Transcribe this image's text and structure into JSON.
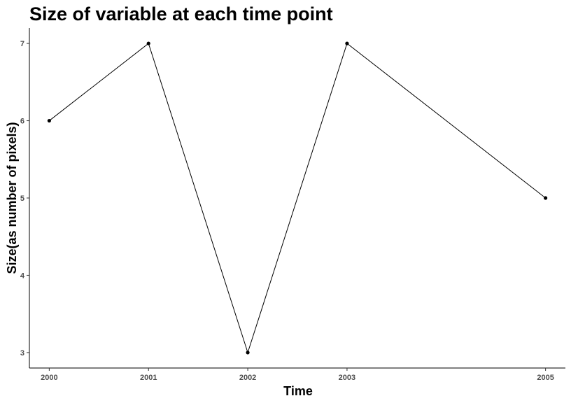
{
  "chart_data": {
    "type": "line",
    "title": "Size of variable at each time point",
    "xlabel": "Time",
    "ylabel": "Size(as number of pixels)",
    "x": [
      2000,
      2001,
      2002,
      2003,
      2005
    ],
    "x_tick_labels": [
      "2000",
      "2001",
      "2002",
      "2003",
      "2005"
    ],
    "y": [
      6,
      7,
      3,
      7,
      5
    ],
    "y_ticks": [
      3,
      4,
      5,
      6,
      7
    ],
    "xlim": [
      1999.8,
      2005.2
    ],
    "ylim": [
      2.8,
      7.2
    ],
    "grid": false,
    "series_color": "#000000"
  }
}
